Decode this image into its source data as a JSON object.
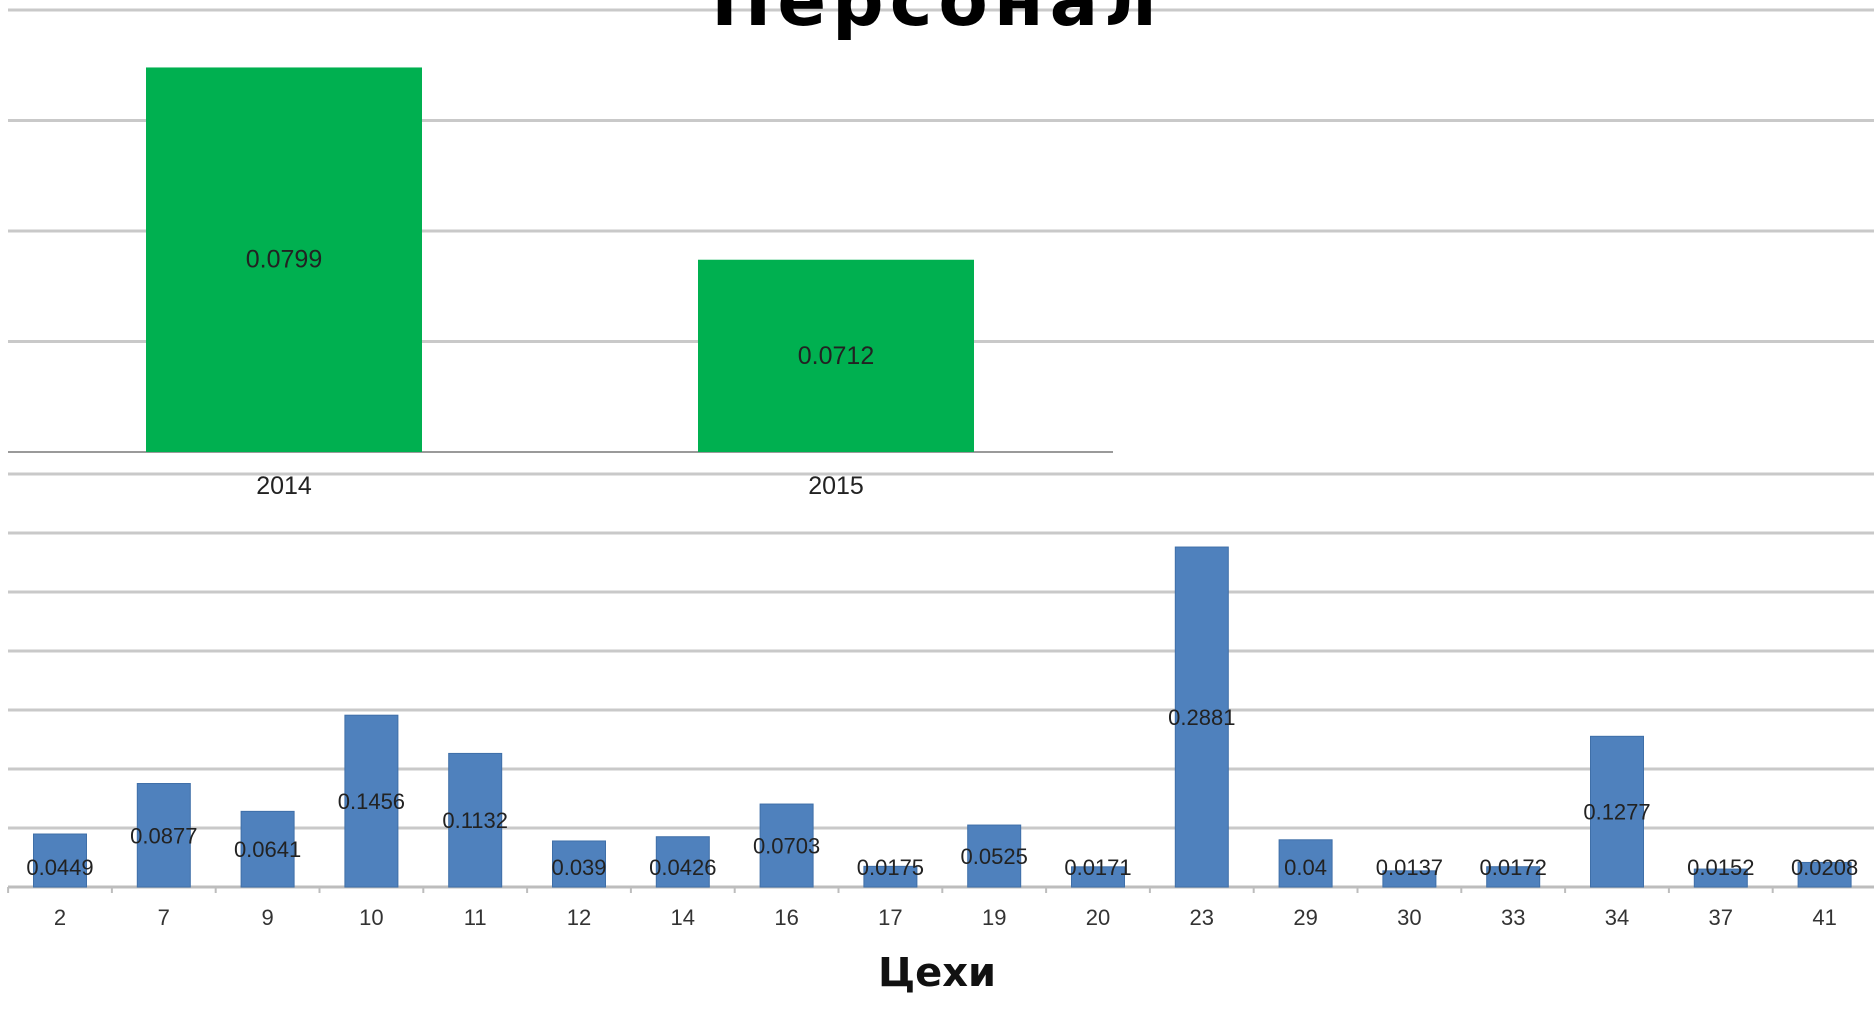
{
  "title": "Персонал",
  "xlabel": "Цехи",
  "colors": {
    "main_bars": "#4f81bd",
    "inset_bars": "#00b050",
    "grid": "#c9c9c9"
  },
  "chart_data": [
    {
      "type": "bar",
      "title": "",
      "xlabel": "Цехи",
      "ylabel": "",
      "categories": [
        "2",
        "7",
        "9",
        "10",
        "11",
        "12",
        "14",
        "16",
        "17",
        "19",
        "20",
        "23",
        "29",
        "30",
        "33",
        "34",
        "37",
        "41"
      ],
      "values": [
        0.0449,
        0.0877,
        0.0641,
        0.1456,
        0.1132,
        0.039,
        0.0426,
        0.0703,
        0.0175,
        0.0525,
        0.0171,
        0.2881,
        0.04,
        0.0137,
        0.0172,
        0.1277,
        0.0152,
        0.0208
      ],
      "value_labels": [
        "0.0449",
        "0.0877",
        "0.0641",
        "0.1456",
        "0.1132",
        "0.039",
        "0.0426",
        "0.0703",
        "0.0175",
        "0.0525",
        "0.0171",
        "0.2881",
        "0.04",
        "0.0137",
        "0.0172",
        "0.1277",
        "0.0152",
        "0.0208"
      ],
      "ylim": [
        0,
        0.35
      ],
      "grid": true
    },
    {
      "type": "bar",
      "title": "",
      "categories": [
        "2014",
        "2015"
      ],
      "values": [
        0.0799,
        0.0712
      ],
      "value_labels": [
        "0.0799",
        "0.0712"
      ],
      "ylim": [
        0.0625,
        0.0825
      ],
      "grid": true
    }
  ]
}
